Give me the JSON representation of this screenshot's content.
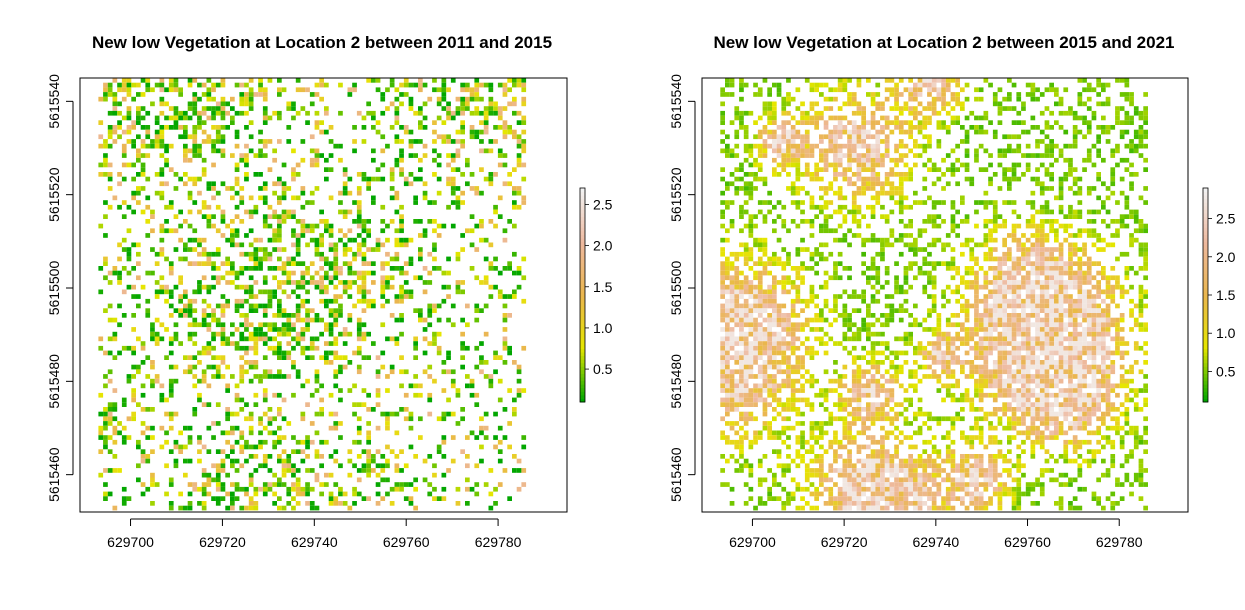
{
  "chart_data": [
    {
      "type": "heatmap",
      "title": "New low Vegetation at Location 2 between 2011 and 2015",
      "xlabel": "",
      "ylabel": "",
      "x_ticks": [
        629700,
        629720,
        629740,
        629760,
        629780
      ],
      "y_ticks": [
        5615460,
        5615480,
        5615500,
        5615520,
        5615540
      ],
      "xlim": [
        629689,
        629795
      ],
      "ylim": [
        5615452,
        5615545
      ],
      "raster_xlim": [
        629693,
        629787
      ],
      "raster_ylim": [
        5615452,
        5615545
      ],
      "legend": {
        "position": "right",
        "ticks": [
          0.5,
          1.0,
          1.5,
          2.0,
          2.5
        ],
        "tick_labels": [
          "0.5",
          "1.0",
          "1.5",
          "2.0",
          "2.5"
        ],
        "range": [
          0.1,
          2.7
        ],
        "colors": [
          "#00A600",
          "#E6E600",
          "#EAB64E",
          "#EEB99F",
          "#F2F2F2"
        ]
      },
      "description_density": 0.33,
      "value_mean": 0.45
    },
    {
      "type": "heatmap",
      "title": "New low Vegetation at Location 2 between 2015 and 2021",
      "xlabel": "",
      "ylabel": "",
      "x_ticks": [
        629700,
        629720,
        629740,
        629760,
        629780
      ],
      "y_ticks": [
        5615460,
        5615480,
        5615500,
        5615520,
        5615540
      ],
      "xlim": [
        629689,
        629795
      ],
      "ylim": [
        5615452,
        5615545
      ],
      "raster_xlim": [
        629693,
        629787
      ],
      "raster_ylim": [
        5615452,
        5615545
      ],
      "legend": {
        "position": "right",
        "ticks": [
          0.5,
          1.0,
          1.5,
          2.0,
          2.5
        ],
        "tick_labels": [
          "0.5",
          "1.0",
          "1.5",
          "2.0",
          "2.5"
        ],
        "range": [
          0.1,
          2.9
        ],
        "colors": [
          "#00A600",
          "#E6E600",
          "#EAB64E",
          "#EEB99F",
          "#F2F2F2"
        ]
      },
      "description_density": 0.62,
      "value_mean": 1.4
    }
  ]
}
